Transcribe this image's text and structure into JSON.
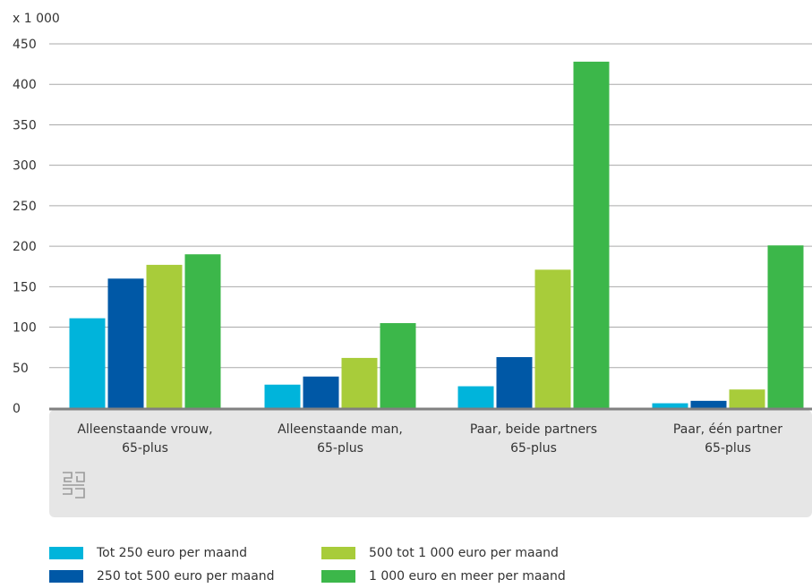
{
  "colors": {
    "series": [
      "#00b4db",
      "#0058a6",
      "#a8cc3a",
      "#3cb74a"
    ],
    "axis": "#808080",
    "grid": "#aaaaaa",
    "panel": "#e6e6e6",
    "logo": "#9a9a9a"
  },
  "logo": {
    "icon": "cbs-logo-icon",
    "text": "cbs"
  },
  "chart_data": {
    "type": "bar",
    "unit_label": "x 1 000",
    "ylim": [
      0,
      450
    ],
    "yticks": [
      "0",
      "50",
      "100",
      "150",
      "200",
      "250",
      "300",
      "350",
      "400",
      "450"
    ],
    "grid": true,
    "legend_position": "bottom",
    "categories": [
      [
        "Alleenstaande vrouw,",
        "65-plus"
      ],
      [
        "Alleenstaande man,",
        "65-plus"
      ],
      [
        "Paar, beide partners",
        "65-plus"
      ],
      [
        "Paar, één partner",
        "65-plus"
      ]
    ],
    "series": [
      {
        "name": "Tot 250 euro per maand",
        "values": [
          111,
          29,
          27,
          6
        ]
      },
      {
        "name": "250 tot 500 euro per maand",
        "values": [
          160,
          39,
          63,
          9
        ]
      },
      {
        "name": "500 tot 1 000 euro per maand",
        "values": [
          177,
          62,
          171,
          23
        ]
      },
      {
        "name": "1 000 euro en meer per maand",
        "values": [
          190,
          105,
          428,
          201
        ]
      }
    ]
  }
}
